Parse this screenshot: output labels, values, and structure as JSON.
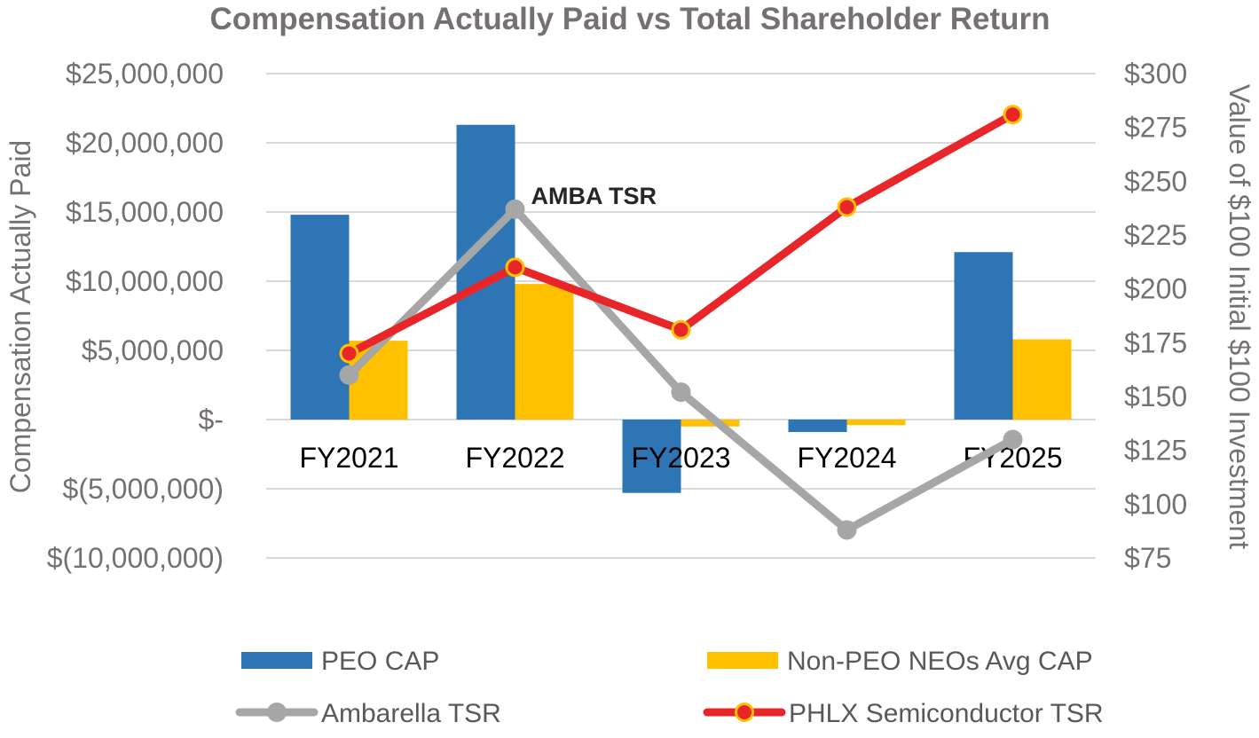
{
  "chart_data": {
    "type": "bar",
    "title": "Compensation Actually Paid vs Total Shareholder Return",
    "categories": [
      "FY2021",
      "FY2022",
      "FY2023",
      "FY2024",
      "FY2025"
    ],
    "ylabel": "Compensation Actually Paid",
    "y2label": "Value of $100 Initial $100 Investment",
    "ylim": [
      -10000000,
      25000000
    ],
    "y2lim": [
      75,
      300
    ],
    "y_ticks": [
      {
        "value": 25000000,
        "label": "$25,000,000"
      },
      {
        "value": 20000000,
        "label": "$20,000,000"
      },
      {
        "value": 15000000,
        "label": "$15,000,000"
      },
      {
        "value": 10000000,
        "label": "$10,000,000"
      },
      {
        "value": 5000000,
        "label": "$5,000,000"
      },
      {
        "value": 0,
        "label": "$-"
      },
      {
        "value": -5000000,
        "label": "$(5,000,000)"
      },
      {
        "value": -10000000,
        "label": "$(10,000,000)"
      }
    ],
    "y2_ticks": [
      {
        "value": 300,
        "label": "$300"
      },
      {
        "value": 275,
        "label": "$275"
      },
      {
        "value": 250,
        "label": "$250"
      },
      {
        "value": 225,
        "label": "$225"
      },
      {
        "value": 200,
        "label": "$200"
      },
      {
        "value": 175,
        "label": "$175"
      },
      {
        "value": 150,
        "label": "$150"
      },
      {
        "value": 125,
        "label": "$125"
      },
      {
        "value": 100,
        "label": "$100"
      },
      {
        "value": 75,
        "label": "$75"
      }
    ],
    "bar_series": [
      {
        "name": "PEO CAP",
        "color": "#2E75B6",
        "values": [
          14800000,
          21300000,
          -5300000,
          -900000,
          12100000
        ]
      },
      {
        "name": "Non-PEO NEOs Avg CAP",
        "color": "#FFC000",
        "values": [
          5700000,
          9800000,
          -500000,
          -400000,
          5800000
        ]
      }
    ],
    "line_series": [
      {
        "name": "Ambarella TSR",
        "color": "#A6A6A6",
        "marker_fill": "#A6A6A6",
        "values": [
          160,
          237,
          152,
          88,
          130
        ]
      },
      {
        "name": "PHLX Semiconductor TSR",
        "color": "#E8262A",
        "marker_fill": "#E8262A",
        "marker_edge": "#FFC000",
        "values": [
          170,
          210,
          181,
          238,
          281
        ]
      }
    ],
    "annotation": {
      "text": "AMBA TSR",
      "series": "Ambarella TSR",
      "category": "FY2022"
    },
    "grid": true,
    "legend_position": "bottom"
  }
}
